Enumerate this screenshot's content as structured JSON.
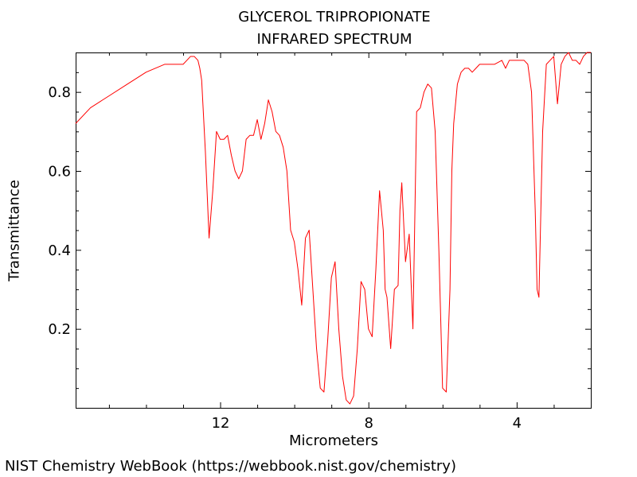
{
  "chart_data": {
    "type": "line",
    "title": "GLYCEROL TRIPROPIONATE",
    "subtitle": "INFRARED SPECTRUM",
    "xlabel": "Micrometers",
    "ylabel": "Transmittance",
    "xlim": [
      15.9,
      2.0
    ],
    "ylim": [
      0.0,
      0.9
    ],
    "x_ticks": [
      12,
      8,
      4
    ],
    "x_tick_labels": [
      "12",
      "8",
      "4"
    ],
    "y_ticks": [
      0.2,
      0.4,
      0.6,
      0.8
    ],
    "y_tick_labels": [
      "0.2",
      "0.4",
      "0.6",
      "0.8"
    ],
    "grid": false,
    "series": [
      {
        "color": "#ff0000",
        "x": [
          15.9,
          15.5,
          15.0,
          14.5,
          14.0,
          13.5,
          13.2,
          13.0,
          12.9,
          12.8,
          12.7,
          12.6,
          12.55,
          12.5,
          12.4,
          12.3,
          12.2,
          12.1,
          12.0,
          11.9,
          11.8,
          11.7,
          11.6,
          11.5,
          11.4,
          11.3,
          11.2,
          11.1,
          11.0,
          10.9,
          10.8,
          10.7,
          10.6,
          10.5,
          10.4,
          10.3,
          10.2,
          10.1,
          10.0,
          9.9,
          9.8,
          9.7,
          9.6,
          9.5,
          9.4,
          9.3,
          9.2,
          9.1,
          9.0,
          8.9,
          8.8,
          8.7,
          8.6,
          8.5,
          8.4,
          8.3,
          8.2,
          8.1,
          8.0,
          7.9,
          7.8,
          7.7,
          7.6,
          7.55,
          7.5,
          7.4,
          7.3,
          7.2,
          7.15,
          7.1,
          7.0,
          6.9,
          6.8,
          6.7,
          6.6,
          6.5,
          6.4,
          6.3,
          6.2,
          6.1,
          6.0,
          5.9,
          5.8,
          5.75,
          5.7,
          5.6,
          5.5,
          5.4,
          5.3,
          5.2,
          5.1,
          5.0,
          4.8,
          4.6,
          4.4,
          4.3,
          4.2,
          4.0,
          3.8,
          3.7,
          3.6,
          3.5,
          3.45,
          3.4,
          3.3,
          3.2,
          3.1,
          3.0,
          2.9,
          2.8,
          2.7,
          2.6,
          2.5,
          2.4,
          2.3,
          2.2,
          2.1,
          2.0
        ],
        "y": [
          0.72,
          0.76,
          0.79,
          0.82,
          0.85,
          0.87,
          0.87,
          0.87,
          0.88,
          0.89,
          0.89,
          0.88,
          0.86,
          0.83,
          0.65,
          0.43,
          0.55,
          0.7,
          0.68,
          0.68,
          0.69,
          0.64,
          0.6,
          0.58,
          0.6,
          0.68,
          0.69,
          0.69,
          0.73,
          0.68,
          0.72,
          0.78,
          0.75,
          0.7,
          0.69,
          0.66,
          0.6,
          0.45,
          0.42,
          0.35,
          0.26,
          0.43,
          0.45,
          0.3,
          0.15,
          0.05,
          0.04,
          0.17,
          0.33,
          0.37,
          0.2,
          0.08,
          0.02,
          0.01,
          0.03,
          0.15,
          0.32,
          0.3,
          0.2,
          0.18,
          0.35,
          0.55,
          0.45,
          0.3,
          0.28,
          0.15,
          0.3,
          0.31,
          0.5,
          0.57,
          0.37,
          0.44,
          0.2,
          0.75,
          0.76,
          0.8,
          0.82,
          0.81,
          0.7,
          0.4,
          0.05,
          0.04,
          0.3,
          0.6,
          0.72,
          0.82,
          0.85,
          0.86,
          0.86,
          0.85,
          0.86,
          0.87,
          0.87,
          0.87,
          0.88,
          0.86,
          0.88,
          0.88,
          0.88,
          0.87,
          0.8,
          0.5,
          0.3,
          0.28,
          0.7,
          0.87,
          0.88,
          0.89,
          0.77,
          0.87,
          0.89,
          0.9,
          0.88,
          0.88,
          0.87,
          0.89,
          0.9,
          0.9
        ]
      }
    ]
  },
  "footer": "NIST Chemistry WebBook (https://webbook.nist.gov/chemistry)"
}
